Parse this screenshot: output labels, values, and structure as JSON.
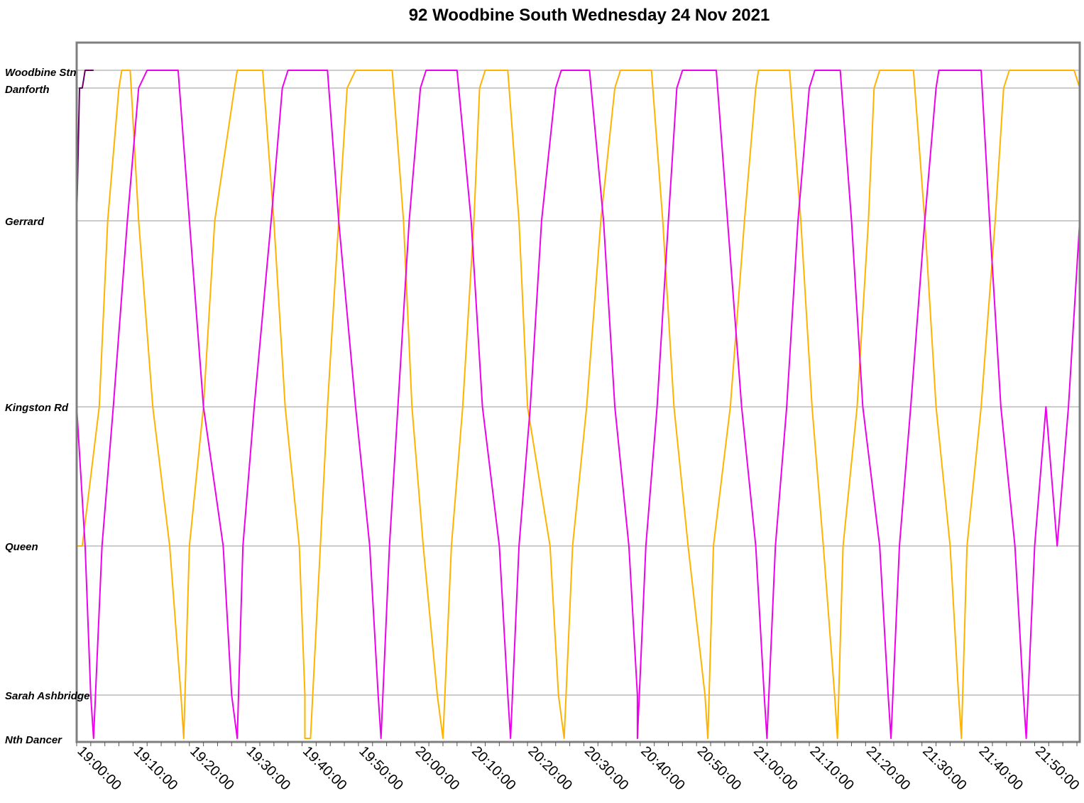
{
  "chart_data": {
    "type": "line",
    "title": "92 Woodbine South Wednesday 24 Nov 2021",
    "xlabel": "",
    "ylabel": "",
    "xlim": [
      "19:00:00",
      "21:58:00"
    ],
    "x_ticks": [
      "19:00:00",
      "19:10:00",
      "19:20:00",
      "19:30:00",
      "19:40:00",
      "19:50:00",
      "20:00:00",
      "20:10:00",
      "20:20:00",
      "20:30:00",
      "20:40:00",
      "20:50:00",
      "21:00:00",
      "21:10:00",
      "21:20:00",
      "21:30:00",
      "21:40:00",
      "21:50:00"
    ],
    "stops": [
      "Woodbine Stn",
      "Danforth",
      "Gerrard",
      "Kingston Rd",
      "Queen",
      "Sarah Ashbridge",
      "Nth Dancer"
    ],
    "grid": "horizontal lines at stops",
    "legend": "none",
    "series": [
      {
        "color": "#FFB300",
        "points": [
          [
            "19:00:00",
            "Queen"
          ],
          [
            "19:01:00",
            "Queen"
          ],
          [
            "19:04:00",
            "Kingston Rd"
          ],
          [
            "19:05:30",
            "Gerrard"
          ],
          [
            "19:07:30",
            "Danforth"
          ],
          [
            "19:08:00",
            "Woodbine Stn"
          ],
          [
            "19:09:30",
            "Woodbine Stn"
          ],
          [
            "19:11:00",
            "Gerrard"
          ],
          [
            "19:13:30",
            "Kingston Rd"
          ],
          [
            "19:16:30",
            "Queen"
          ],
          [
            "19:18:30",
            "Sarah Ashbridge"
          ],
          [
            "19:19:00",
            "Nth Dancer"
          ],
          [
            "19:20:00",
            "Queen"
          ],
          [
            "19:22:30",
            "Kingston Rd"
          ],
          [
            "19:24:30",
            "Gerrard"
          ],
          [
            "19:28:00",
            "Danforth"
          ],
          [
            "19:28:30",
            "Woodbine Stn"
          ],
          [
            "19:33:00",
            "Woodbine Stn"
          ],
          [
            "19:35:00",
            "Gerrard"
          ],
          [
            "19:37:00",
            "Kingston Rd"
          ],
          [
            "19:39:30",
            "Queen"
          ],
          [
            "19:40:30",
            "Sarah Ashbridge"
          ],
          [
            "19:40:30",
            "Nth Dancer"
          ],
          [
            "19:41:30",
            "Nth Dancer"
          ],
          [
            "19:44:30",
            "Kingston Rd"
          ],
          [
            "19:46:30",
            "Gerrard"
          ],
          [
            "19:48:00",
            "Danforth"
          ],
          [
            "19:49:30",
            "Woodbine Stn"
          ],
          [
            "19:56:00",
            "Woodbine Stn"
          ],
          [
            "19:58:00",
            "Gerrard"
          ],
          [
            "19:59:30",
            "Kingston Rd"
          ],
          [
            "20:01:30",
            "Queen"
          ],
          [
            "20:04:00",
            "Sarah Ashbridge"
          ],
          [
            "20:05:00",
            "Nth Dancer"
          ],
          [
            "20:06:30",
            "Queen"
          ],
          [
            "20:08:30",
            "Kingston Rd"
          ],
          [
            "20:10:30",
            "Gerrard"
          ],
          [
            "20:11:30",
            "Danforth"
          ],
          [
            "20:12:30",
            "Woodbine Stn"
          ],
          [
            "20:16:30",
            "Woodbine Stn"
          ],
          [
            "20:18:30",
            "Gerrard"
          ],
          [
            "20:20:00",
            "Kingston Rd"
          ],
          [
            "20:24:00",
            "Queen"
          ],
          [
            "20:25:30",
            "Sarah Ashbridge"
          ],
          [
            "20:26:30",
            "Nth Dancer"
          ],
          [
            "20:28:00",
            "Queen"
          ],
          [
            "20:30:30",
            "Kingston Rd"
          ],
          [
            "20:33:00",
            "Gerrard"
          ],
          [
            "20:35:30",
            "Danforth"
          ],
          [
            "20:36:30",
            "Woodbine Stn"
          ],
          [
            "20:42:00",
            "Woodbine Stn"
          ],
          [
            "20:44:00",
            "Gerrard"
          ],
          [
            "20:46:00",
            "Kingston Rd"
          ],
          [
            "20:48:30",
            "Queen"
          ],
          [
            "20:51:30",
            "Sarah Ashbridge"
          ],
          [
            "20:52:00",
            "Nth Dancer"
          ],
          [
            "20:53:00",
            "Queen"
          ],
          [
            "20:56:00",
            "Kingston Rd"
          ],
          [
            "20:58:30",
            "Gerrard"
          ],
          [
            "21:00:30",
            "Danforth"
          ],
          [
            "21:01:00",
            "Woodbine Stn"
          ],
          [
            "21:06:30",
            "Woodbine Stn"
          ],
          [
            "21:08:30",
            "Gerrard"
          ],
          [
            "21:10:30",
            "Kingston Rd"
          ],
          [
            "21:12:30",
            "Queen"
          ],
          [
            "21:14:30",
            "Sarah Ashbridge"
          ],
          [
            "21:15:00",
            "Nth Dancer"
          ],
          [
            "21:16:00",
            "Queen"
          ],
          [
            "21:18:30",
            "Kingston Rd"
          ],
          [
            "21:20:30",
            "Gerrard"
          ],
          [
            "21:21:30",
            "Danforth"
          ],
          [
            "21:22:30",
            "Woodbine Stn"
          ],
          [
            "21:28:30",
            "Woodbine Stn"
          ],
          [
            "21:30:30",
            "Gerrard"
          ],
          [
            "21:32:30",
            "Kingston Rd"
          ],
          [
            "21:35:00",
            "Queen"
          ],
          [
            "21:36:30",
            "Sarah Ashbridge"
          ],
          [
            "21:37:00",
            "Nth Dancer"
          ],
          [
            "21:38:00",
            "Queen"
          ],
          [
            "21:40:30",
            "Kingston Rd"
          ],
          [
            "21:43:00",
            "Gerrard"
          ],
          [
            "21:44:30",
            "Danforth"
          ],
          [
            "21:45:30",
            "Woodbine Stn"
          ],
          [
            "21:57:00",
            "Woodbine Stn"
          ],
          [
            "21:58:00",
            "Danforth"
          ]
        ]
      },
      {
        "color": "#EE00EE",
        "points": [
          [
            "19:00:00",
            "Kingston Rd"
          ],
          [
            "19:01:30",
            "Queen"
          ],
          [
            "19:02:30",
            "Sarah Ashbridge"
          ],
          [
            "19:03:00",
            "Nth Dancer"
          ],
          [
            "19:04:30",
            "Queen"
          ],
          [
            "19:06:30",
            "Kingston Rd"
          ],
          [
            "19:09:00",
            "Gerrard"
          ],
          [
            "19:11:00",
            "Danforth"
          ],
          [
            "19:12:30",
            "Woodbine Stn"
          ],
          [
            "19:18:00",
            "Woodbine Stn"
          ],
          [
            "19:20:00",
            "Gerrard"
          ],
          [
            "19:22:30",
            "Kingston Rd"
          ],
          [
            "19:26:00",
            "Queen"
          ],
          [
            "19:27:30",
            "Sarah Ashbridge"
          ],
          [
            "19:28:30",
            "Nth Dancer"
          ],
          [
            "19:29:30",
            "Queen"
          ],
          [
            "19:31:30",
            "Kingston Rd"
          ],
          [
            "19:34:30",
            "Gerrard"
          ],
          [
            "19:36:30",
            "Danforth"
          ],
          [
            "19:37:30",
            "Woodbine Stn"
          ],
          [
            "19:44:30",
            "Woodbine Stn"
          ],
          [
            "19:46:30",
            "Gerrard"
          ],
          [
            "19:49:30",
            "Kingston Rd"
          ],
          [
            "19:52:00",
            "Queen"
          ],
          [
            "19:53:30",
            "Sarah Ashbridge"
          ],
          [
            "19:54:00",
            "Nth Dancer"
          ],
          [
            "19:55:30",
            "Queen"
          ],
          [
            "19:57:00",
            "Kingston Rd"
          ],
          [
            "19:59:00",
            "Gerrard"
          ],
          [
            "20:01:00",
            "Danforth"
          ],
          [
            "20:02:00",
            "Woodbine Stn"
          ],
          [
            "20:07:30",
            "Woodbine Stn"
          ],
          [
            "20:10:00",
            "Gerrard"
          ],
          [
            "20:12:00",
            "Kingston Rd"
          ],
          [
            "20:15:00",
            "Queen"
          ],
          [
            "20:16:30",
            "Sarah Ashbridge"
          ],
          [
            "20:17:00",
            "Nth Dancer"
          ],
          [
            "20:18:30",
            "Queen"
          ],
          [
            "20:20:30",
            "Kingston Rd"
          ],
          [
            "20:22:30",
            "Gerrard"
          ],
          [
            "20:25:00",
            "Danforth"
          ],
          [
            "20:26:00",
            "Woodbine Stn"
          ],
          [
            "20:31:00",
            "Woodbine Stn"
          ],
          [
            "20:33:30",
            "Gerrard"
          ],
          [
            "20:35:30",
            "Kingston Rd"
          ],
          [
            "20:38:00",
            "Queen"
          ],
          [
            "20:39:30",
            "Sarah Ashbridge"
          ],
          [
            "20:39:30",
            "Nth Dancer"
          ],
          [
            "20:41:00",
            "Queen"
          ],
          [
            "20:43:00",
            "Kingston Rd"
          ],
          [
            "20:45:00",
            "Gerrard"
          ],
          [
            "20:46:30",
            "Danforth"
          ],
          [
            "20:47:30",
            "Woodbine Stn"
          ],
          [
            "20:53:30",
            "Woodbine Stn"
          ],
          [
            "20:55:30",
            "Gerrard"
          ],
          [
            "20:58:00",
            "Kingston Rd"
          ],
          [
            "21:00:30",
            "Queen"
          ],
          [
            "21:02:00",
            "Sarah Ashbridge"
          ],
          [
            "21:02:30",
            "Nth Dancer"
          ],
          [
            "21:04:00",
            "Queen"
          ],
          [
            "21:06:00",
            "Kingston Rd"
          ],
          [
            "21:08:00",
            "Gerrard"
          ],
          [
            "21:10:00",
            "Danforth"
          ],
          [
            "21:11:00",
            "Woodbine Stn"
          ],
          [
            "21:15:30",
            "Woodbine Stn"
          ],
          [
            "21:17:30",
            "Gerrard"
          ],
          [
            "21:19:30",
            "Kingston Rd"
          ],
          [
            "21:22:30",
            "Queen"
          ],
          [
            "21:24:00",
            "Sarah Ashbridge"
          ],
          [
            "21:24:30",
            "Nth Dancer"
          ],
          [
            "21:26:00",
            "Queen"
          ],
          [
            "21:28:00",
            "Kingston Rd"
          ],
          [
            "21:30:30",
            "Gerrard"
          ],
          [
            "21:32:30",
            "Danforth"
          ],
          [
            "21:33:00",
            "Woodbine Stn"
          ],
          [
            "21:40:30",
            "Woodbine Stn"
          ],
          [
            "21:42:00",
            "Gerrard"
          ],
          [
            "21:44:00",
            "Kingston Rd"
          ],
          [
            "21:46:30",
            "Queen"
          ],
          [
            "21:48:00",
            "Sarah Ashbridge"
          ],
          [
            "21:48:30",
            "Nth Dancer"
          ],
          [
            "21:50:00",
            "Queen"
          ],
          [
            "21:52:00",
            "Kingston Rd"
          ],
          [
            "21:54:00",
            "Queen"
          ],
          [
            "21:56:00",
            "Kingston Rd"
          ],
          [
            "21:58:00",
            "Gerrard"
          ]
        ]
      },
      {
        "color": "#660066",
        "points": [
          [
            "19:00:00",
            "Gerrard"
          ],
          [
            "19:00:30",
            "Danforth"
          ],
          [
            "19:01:00",
            "Danforth"
          ],
          [
            "19:01:30",
            "Woodbine Stn"
          ],
          [
            "19:02:00",
            "Woodbine Stn"
          ],
          [
            "19:02:30",
            "Woodbine Stn"
          ],
          [
            "19:03:00",
            "Woodbine Stn"
          ]
        ]
      }
    ]
  }
}
